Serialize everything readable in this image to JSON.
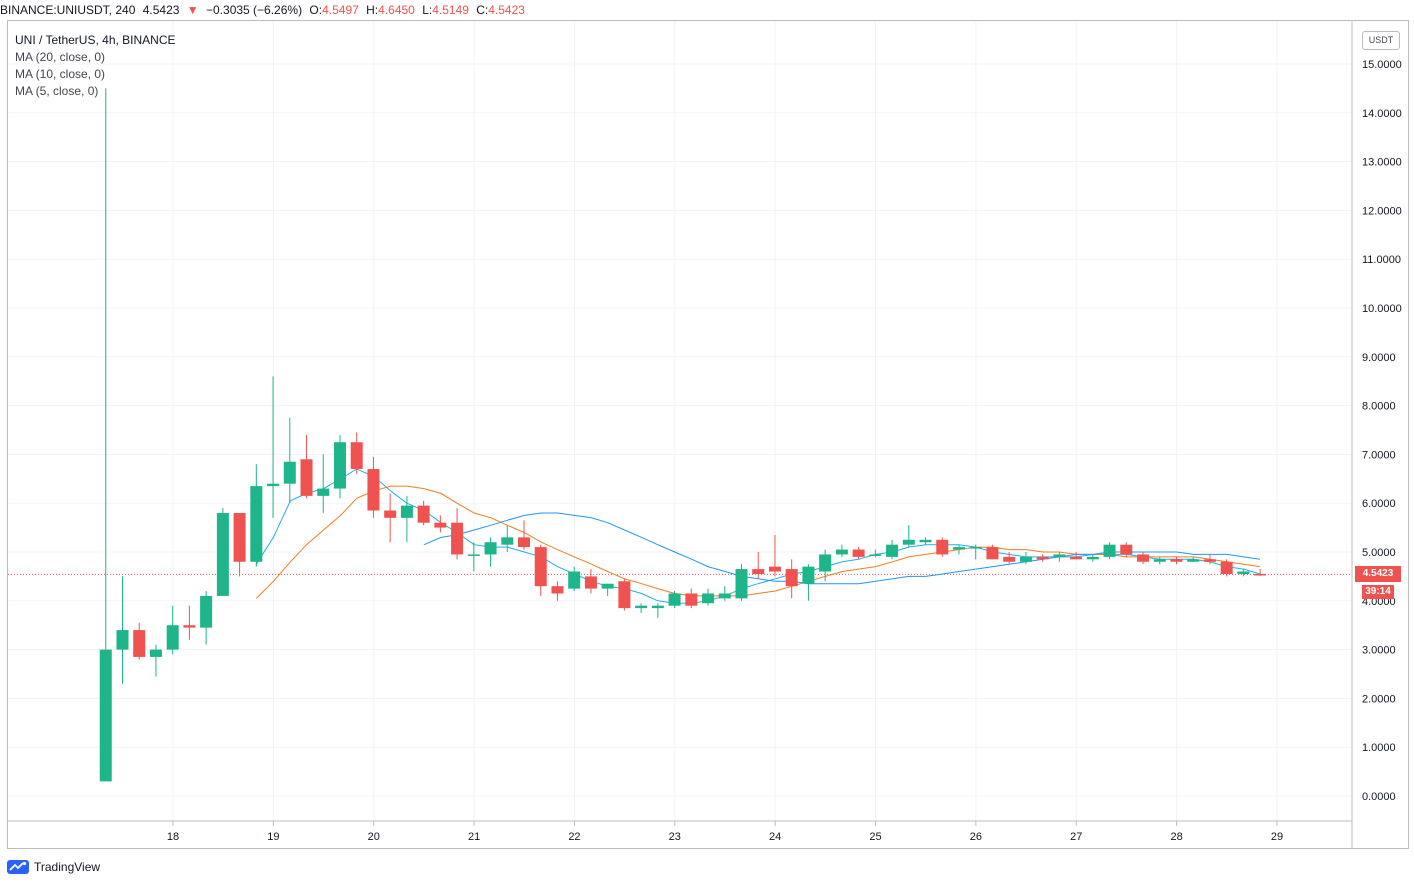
{
  "header": {
    "symbol": "BINANCE:UNIUSDT, 240",
    "last": "4.5423",
    "change_arrow": "▼",
    "change": "−0.3035 (−6.26%)",
    "o_label": "O:",
    "o_value": "4.5497",
    "h_label": "H:",
    "h_value": "4.6450",
    "l_label": "L:",
    "l_value": "4.5149",
    "c_label": "C:",
    "c_value": "4.5423"
  },
  "legend": {
    "title": "UNI / TetherUS, 4h, BINANCE",
    "ma20": "MA (20, close, 0)",
    "ma10": "MA (10, close, 0)",
    "ma5": "MA (5, close, 0)"
  },
  "price_axis": {
    "unit": "USDT",
    "last_price_tag": "4.5423",
    "countdown": "39:14"
  },
  "footer": {
    "brand": "TradingView"
  },
  "colors": {
    "up": "#26a69a",
    "up_fill": "#1db589",
    "down": "#ef5350",
    "ma5": "#22aee8",
    "ma10": "#f57c1f",
    "ma20": "#2196f3",
    "grid": "#f0f3fa",
    "axis_text": "#131722"
  },
  "chart_data": {
    "type": "candlestick",
    "interval": "4h",
    "ylim": [
      -0.6,
      15.5
    ],
    "y_ticks": [
      "15.0000",
      "14.0000",
      "13.0000",
      "12.0000",
      "11.0000",
      "10.0000",
      "9.0000",
      "8.0000",
      "7.0000",
      "6.0000",
      "5.0000",
      "4.0000",
      "3.0000",
      "2.0000",
      "1.0000",
      "0.0000"
    ],
    "x_ticks": [
      {
        "label": "18",
        "day": 18
      },
      {
        "label": "19",
        "day": 19
      },
      {
        "label": "20",
        "day": 20
      },
      {
        "label": "21",
        "day": 21
      },
      {
        "label": "22",
        "day": 22
      },
      {
        "label": "23",
        "day": 23
      },
      {
        "label": "24",
        "day": 24
      },
      {
        "label": "25",
        "day": 25
      },
      {
        "label": "26",
        "day": 26
      },
      {
        "label": "27",
        "day": 27
      },
      {
        "label": "28",
        "day": 28
      },
      {
        "label": "29",
        "day": 29
      }
    ],
    "first_candle_day": 17.33,
    "candle_step_days": 0.1667,
    "candles": [
      [
        0.3,
        14.5,
        0.3,
        3.0
      ],
      [
        3.0,
        4.5,
        2.3,
        3.4
      ],
      [
        3.4,
        3.55,
        2.8,
        2.85
      ],
      [
        2.85,
        3.1,
        2.45,
        3.0
      ],
      [
        3.0,
        3.9,
        2.9,
        3.5
      ],
      [
        3.5,
        3.9,
        3.2,
        3.45
      ],
      [
        3.45,
        4.2,
        3.1,
        4.1
      ],
      [
        4.1,
        5.9,
        4.1,
        5.8
      ],
      [
        5.8,
        5.8,
        4.5,
        4.8
      ],
      [
        4.8,
        6.8,
        4.7,
        6.35
      ],
      [
        6.35,
        8.6,
        5.7,
        6.4
      ],
      [
        6.4,
        7.75,
        6.0,
        6.85
      ],
      [
        6.9,
        7.4,
        6.1,
        6.15
      ],
      [
        6.15,
        7.0,
        5.8,
        6.3
      ],
      [
        6.3,
        7.4,
        6.1,
        7.25
      ],
      [
        7.25,
        7.45,
        6.6,
        6.7
      ],
      [
        6.7,
        6.95,
        5.7,
        5.85
      ],
      [
        5.85,
        6.2,
        5.2,
        5.7
      ],
      [
        5.7,
        6.15,
        5.2,
        5.95
      ],
      [
        5.95,
        6.05,
        5.55,
        5.6
      ],
      [
        5.6,
        5.75,
        5.4,
        5.5
      ],
      [
        5.6,
        5.9,
        4.85,
        4.95
      ],
      [
        4.95,
        5.2,
        4.6,
        4.95
      ],
      [
        4.95,
        5.3,
        4.7,
        5.2
      ],
      [
        5.15,
        5.55,
        5.0,
        5.3
      ],
      [
        5.3,
        5.65,
        5.05,
        5.1
      ],
      [
        5.1,
        5.15,
        4.1,
        4.3
      ],
      [
        4.3,
        4.4,
        4.0,
        4.15
      ],
      [
        4.25,
        4.7,
        4.2,
        4.6
      ],
      [
        4.5,
        4.65,
        4.15,
        4.25
      ],
      [
        4.25,
        4.35,
        4.1,
        4.35
      ],
      [
        4.4,
        4.45,
        3.8,
        3.85
      ],
      [
        3.85,
        3.95,
        3.75,
        3.9
      ],
      [
        3.85,
        3.95,
        3.65,
        3.9
      ],
      [
        3.9,
        4.2,
        3.85,
        4.15
      ],
      [
        4.15,
        4.25,
        3.85,
        3.9
      ],
      [
        3.95,
        4.25,
        3.9,
        4.15
      ],
      [
        4.05,
        4.3,
        4.0,
        4.15
      ],
      [
        4.05,
        4.75,
        4.0,
        4.65
      ],
      [
        4.65,
        5.0,
        4.45,
        4.55
      ],
      [
        4.7,
        5.35,
        4.5,
        4.6
      ],
      [
        4.65,
        4.85,
        4.05,
        4.3
      ],
      [
        4.35,
        4.75,
        4.0,
        4.7
      ],
      [
        4.6,
        5.05,
        4.4,
        4.95
      ],
      [
        4.95,
        5.15,
        4.9,
        5.05
      ],
      [
        5.05,
        5.1,
        4.85,
        4.9
      ],
      [
        4.95,
        5.05,
        4.9,
        4.95
      ],
      [
        4.9,
        5.25,
        4.85,
        5.15
      ],
      [
        5.15,
        5.55,
        5.1,
        5.25
      ],
      [
        5.2,
        5.3,
        5.15,
        5.25
      ],
      [
        5.25,
        5.3,
        4.9,
        4.95
      ],
      [
        5.05,
        5.15,
        4.95,
        5.1
      ],
      [
        5.1,
        5.15,
        4.85,
        5.1
      ],
      [
        5.1,
        5.15,
        4.85,
        4.85
      ],
      [
        4.9,
        5.0,
        4.75,
        4.8
      ],
      [
        4.8,
        5.0,
        4.75,
        4.9
      ],
      [
        4.9,
        4.95,
        4.8,
        4.85
      ],
      [
        4.9,
        5.0,
        4.8,
        4.95
      ],
      [
        4.9,
        5.0,
        4.85,
        4.85
      ],
      [
        4.85,
        4.95,
        4.8,
        4.9
      ],
      [
        4.9,
        5.2,
        4.85,
        5.15
      ],
      [
        5.15,
        5.2,
        4.9,
        4.95
      ],
      [
        4.95,
        5.0,
        4.75,
        4.8
      ],
      [
        4.8,
        4.9,
        4.75,
        4.85
      ],
      [
        4.85,
        4.9,
        4.75,
        4.8
      ],
      [
        4.8,
        4.9,
        4.8,
        4.85
      ],
      [
        4.85,
        4.95,
        4.75,
        4.8
      ],
      [
        4.8,
        4.85,
        4.5,
        4.55
      ],
      [
        4.55,
        4.65,
        4.5,
        4.6
      ],
      [
        4.55,
        4.65,
        4.51,
        4.54
      ]
    ],
    "series": [
      {
        "name": "MA (5, close, 0)",
        "points": [
          [
            18.83,
            4.75
          ],
          [
            19.0,
            5.3
          ],
          [
            19.17,
            6.05
          ],
          [
            19.33,
            6.2
          ],
          [
            19.5,
            6.3
          ],
          [
            19.67,
            6.5
          ],
          [
            19.83,
            6.7
          ],
          [
            20.0,
            6.55
          ],
          [
            20.17,
            6.25
          ],
          [
            20.33,
            6.0
          ],
          [
            20.5,
            5.85
          ],
          [
            20.67,
            5.6
          ],
          [
            20.83,
            5.4
          ],
          [
            21.0,
            5.15
          ],
          [
            21.17,
            5.1
          ],
          [
            21.33,
            5.1
          ],
          [
            21.5,
            5.0
          ],
          [
            21.67,
            4.9
          ],
          [
            21.83,
            4.7
          ],
          [
            22.0,
            4.55
          ],
          [
            22.17,
            4.4
          ],
          [
            22.33,
            4.3
          ],
          [
            22.5,
            4.25
          ],
          [
            22.67,
            4.15
          ],
          [
            22.83,
            4.0
          ],
          [
            23.0,
            3.95
          ],
          [
            23.17,
            3.95
          ],
          [
            23.33,
            4.0
          ],
          [
            23.5,
            4.1
          ],
          [
            23.67,
            4.25
          ],
          [
            23.83,
            4.35
          ],
          [
            24.0,
            4.45
          ],
          [
            24.17,
            4.55
          ],
          [
            24.33,
            4.6
          ],
          [
            24.5,
            4.7
          ],
          [
            24.67,
            4.8
          ],
          [
            24.83,
            4.85
          ],
          [
            25.0,
            4.95
          ],
          [
            25.17,
            5.0
          ],
          [
            25.33,
            5.1
          ],
          [
            25.5,
            5.15
          ],
          [
            25.67,
            5.15
          ],
          [
            25.83,
            5.15
          ],
          [
            26.0,
            5.1
          ],
          [
            26.17,
            5.0
          ],
          [
            26.33,
            4.95
          ],
          [
            26.5,
            4.9
          ],
          [
            26.67,
            4.9
          ],
          [
            26.83,
            4.9
          ],
          [
            27.0,
            4.9
          ],
          [
            27.17,
            4.95
          ],
          [
            27.33,
            4.95
          ],
          [
            27.5,
            4.95
          ],
          [
            27.67,
            4.9
          ],
          [
            27.83,
            4.85
          ],
          [
            28.0,
            4.85
          ],
          [
            28.17,
            4.85
          ],
          [
            28.33,
            4.8
          ],
          [
            28.5,
            4.7
          ],
          [
            28.67,
            4.65
          ],
          [
            28.83,
            4.55
          ]
        ]
      },
      {
        "name": "MA (10, close, 0)",
        "points": [
          [
            18.83,
            4.05
          ],
          [
            19.0,
            4.4
          ],
          [
            19.17,
            4.8
          ],
          [
            19.33,
            5.15
          ],
          [
            19.5,
            5.45
          ],
          [
            19.67,
            5.75
          ],
          [
            19.83,
            6.1
          ],
          [
            20.0,
            6.25
          ],
          [
            20.17,
            6.35
          ],
          [
            20.33,
            6.35
          ],
          [
            20.5,
            6.3
          ],
          [
            20.67,
            6.2
          ],
          [
            20.83,
            6.0
          ],
          [
            21.0,
            5.8
          ],
          [
            21.17,
            5.7
          ],
          [
            21.33,
            5.55
          ],
          [
            21.5,
            5.4
          ],
          [
            21.67,
            5.2
          ],
          [
            21.83,
            5.05
          ],
          [
            22.0,
            4.9
          ],
          [
            22.17,
            4.75
          ],
          [
            22.33,
            4.6
          ],
          [
            22.5,
            4.45
          ],
          [
            22.67,
            4.35
          ],
          [
            22.83,
            4.25
          ],
          [
            23.0,
            4.15
          ],
          [
            23.17,
            4.1
          ],
          [
            23.33,
            4.1
          ],
          [
            23.5,
            4.1
          ],
          [
            23.67,
            4.1
          ],
          [
            23.83,
            4.15
          ],
          [
            24.0,
            4.2
          ],
          [
            24.17,
            4.3
          ],
          [
            24.33,
            4.4
          ],
          [
            24.5,
            4.5
          ],
          [
            24.67,
            4.6
          ],
          [
            24.83,
            4.65
          ],
          [
            25.0,
            4.7
          ],
          [
            25.17,
            4.8
          ],
          [
            25.33,
            4.9
          ],
          [
            25.5,
            4.95
          ],
          [
            25.67,
            5.0
          ],
          [
            25.83,
            5.05
          ],
          [
            26.0,
            5.1
          ],
          [
            26.17,
            5.1
          ],
          [
            26.33,
            5.05
          ],
          [
            26.5,
            5.05
          ],
          [
            26.67,
            5.0
          ],
          [
            26.83,
            5.0
          ],
          [
            27.0,
            4.95
          ],
          [
            27.17,
            4.95
          ],
          [
            27.33,
            4.95
          ],
          [
            27.5,
            4.9
          ],
          [
            27.67,
            4.9
          ],
          [
            27.83,
            4.9
          ],
          [
            28.0,
            4.9
          ],
          [
            28.17,
            4.9
          ],
          [
            28.33,
            4.85
          ],
          [
            28.5,
            4.8
          ],
          [
            28.67,
            4.75
          ],
          [
            28.83,
            4.7
          ]
        ]
      },
      {
        "name": "MA (20, close, 0)",
        "points": [
          [
            20.5,
            5.15
          ],
          [
            20.67,
            5.3
          ],
          [
            20.83,
            5.35
          ],
          [
            21.0,
            5.45
          ],
          [
            21.17,
            5.55
          ],
          [
            21.33,
            5.65
          ],
          [
            21.5,
            5.75
          ],
          [
            21.67,
            5.8
          ],
          [
            21.83,
            5.8
          ],
          [
            22.0,
            5.75
          ],
          [
            22.17,
            5.7
          ],
          [
            22.33,
            5.6
          ],
          [
            22.5,
            5.45
          ],
          [
            22.67,
            5.3
          ],
          [
            22.83,
            5.15
          ],
          [
            23.0,
            5.0
          ],
          [
            23.17,
            4.85
          ],
          [
            23.33,
            4.7
          ],
          [
            23.5,
            4.6
          ],
          [
            23.67,
            4.5
          ],
          [
            23.83,
            4.45
          ],
          [
            24.0,
            4.4
          ],
          [
            24.17,
            4.4
          ],
          [
            24.33,
            4.35
          ],
          [
            24.5,
            4.35
          ],
          [
            24.67,
            4.35
          ],
          [
            24.83,
            4.35
          ],
          [
            25.0,
            4.4
          ],
          [
            25.17,
            4.45
          ],
          [
            25.33,
            4.5
          ],
          [
            25.5,
            4.5
          ],
          [
            25.67,
            4.55
          ],
          [
            25.83,
            4.6
          ],
          [
            26.0,
            4.65
          ],
          [
            26.17,
            4.7
          ],
          [
            26.33,
            4.75
          ],
          [
            26.5,
            4.8
          ],
          [
            26.67,
            4.85
          ],
          [
            26.83,
            4.9
          ],
          [
            27.0,
            4.95
          ],
          [
            27.17,
            4.95
          ],
          [
            27.33,
            5.0
          ],
          [
            27.5,
            5.0
          ],
          [
            27.67,
            5.0
          ],
          [
            27.83,
            5.0
          ],
          [
            28.0,
            5.0
          ],
          [
            28.17,
            4.95
          ],
          [
            28.33,
            4.95
          ],
          [
            28.5,
            4.95
          ],
          [
            28.67,
            4.9
          ],
          [
            28.83,
            4.85
          ]
        ]
      }
    ],
    "last_price": 4.5423
  }
}
